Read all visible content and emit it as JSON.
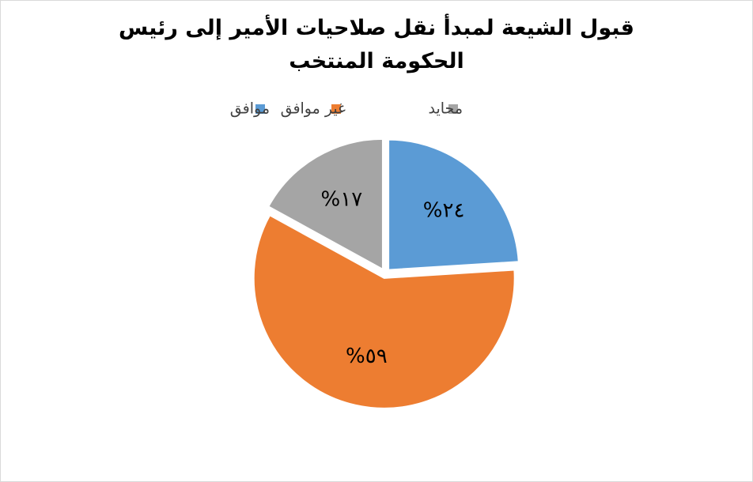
{
  "chart_data": {
    "type": "pie",
    "title": "قبول الشيعة لمبدأ نقل صلاحيات الأمير إلى رئيس الحكومة المنتخب",
    "categories": [
      "موافق",
      "غير موافق",
      "محايد"
    ],
    "values": [
      24,
      59,
      17
    ],
    "value_labels": [
      "%٢٤",
      "%٥٩",
      "%١٧"
    ],
    "colors": [
      "#5b9bd5",
      "#ed7d31",
      "#a5a5a5"
    ],
    "legend": "top"
  }
}
